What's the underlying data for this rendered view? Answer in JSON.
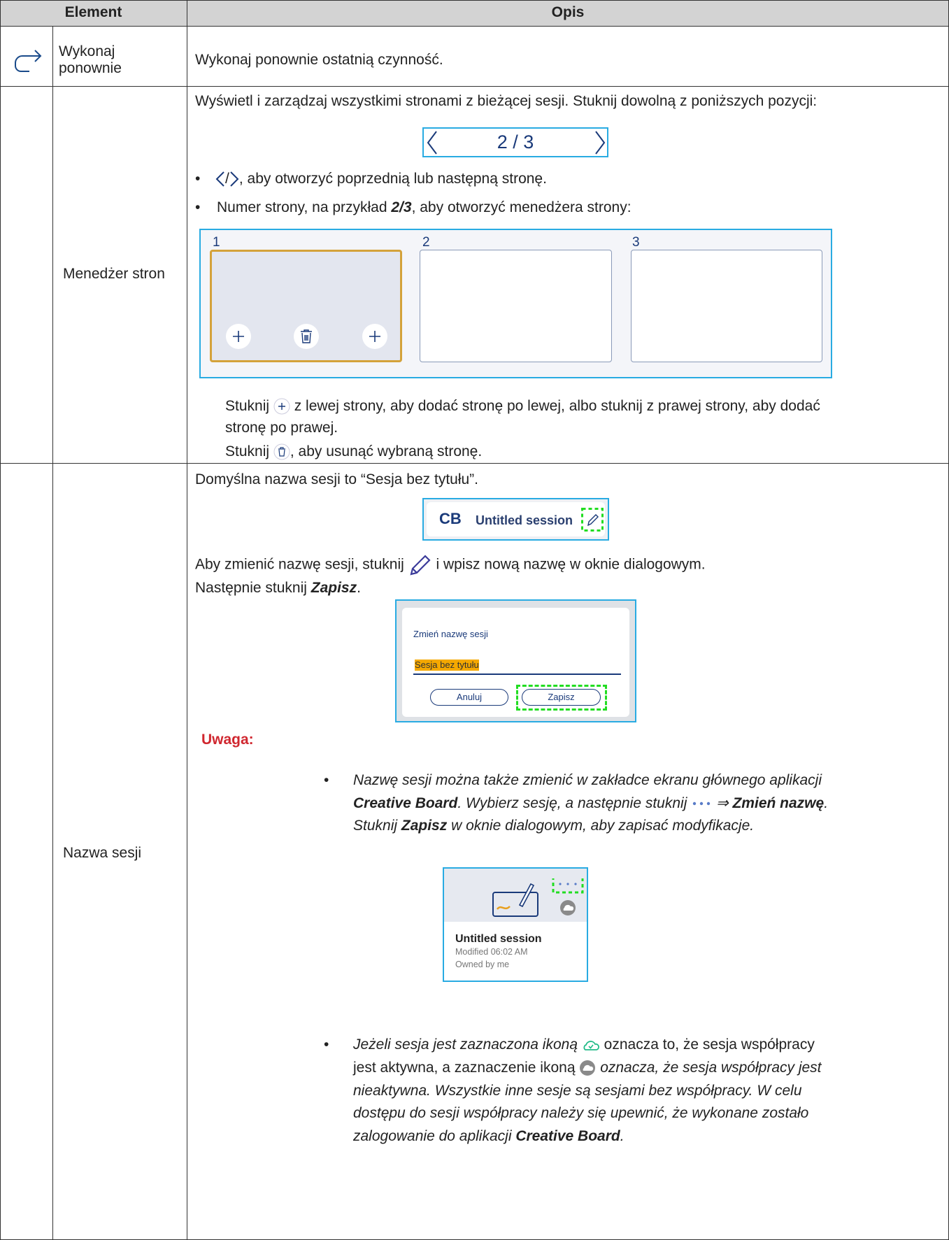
{
  "header": {
    "element": "Element",
    "description": "Opis"
  },
  "redo": {
    "element": "Wykonaj ponownie",
    "description": "Wykonaj ponownie ostatnią czynność."
  },
  "page_manager": {
    "element": "Menedżer stron",
    "intro": "Wyświetl i zarządzaj wszystkimi stronami z bieżącej sesji. Stuknij dowolną z poniższych pozycji:",
    "navigator": "2 / 3",
    "bullets": [
      [
        "/",
        ", aby otworzyć poprzednią lub następną stronę."
      ],
      [
        "Numer strony, na przykład ",
        "2/3",
        ", aby otworzyć menedżera strony:"
      ]
    ],
    "pages": [
      "1",
      "2",
      "3"
    ],
    "add_note": [
      "Stuknij ",
      " z lewej strony, aby dodać stronę po lewej, albo stuknij z prawej strony, aby dodać stronę po prawej."
    ],
    "delete_note": [
      "Stuknij ",
      ", aby usunąć wybraną stronę."
    ]
  },
  "session_name": {
    "element": "Nazwa sesji",
    "intro": "Domyślna nazwa sesji to “Sesja bez tytułu”.",
    "session_bar": {
      "logo": "CB",
      "title": "Untitled session"
    },
    "rename": [
      "Aby zmienić nazwę sesji, stuknij ",
      " i wpisz nową nazwę w oknie dialogowym.",
      "Następnie stuknij ",
      "Zapisz",
      "."
    ],
    "dialog": {
      "title": "Zmień nazwę sesji",
      "input": "Sesja bez tytułu",
      "cancel": "Anuluj",
      "save": "Zapisz"
    },
    "note_label": "Uwaga:",
    "notes": [
      [
        "Nazwę sesji można także zmienić w zakładce ekranu głównego aplikacji ",
        "Creative Board",
        ". Wybierz sesję, a następnie stuknij ",
        " ⇒ ",
        "Zmień nazwę",
        ". Stuknij ",
        "Zapisz",
        " w oknie dialogowym, aby zapisać modyfikacje."
      ],
      [
        "Jeżeli sesja jest zaznaczona ikoną ",
        " oznacza to, że sesja współpracy jest aktywna, a zaznaczenie ikoną ",
        " oznacza, że sesja współpracy jest nieaktywna. Wszystkie inne sesje są sesjami bez współpracy. W celu dostępu do sesji współpracy należy się upewnić, że wykonane zostało zalogowanie do aplikacji ",
        "Creative Board",
        "."
      ]
    ],
    "card": {
      "title": "Untitled session",
      "modified": "Modified 06:02 AM",
      "owner": "Owned by me"
    }
  }
}
